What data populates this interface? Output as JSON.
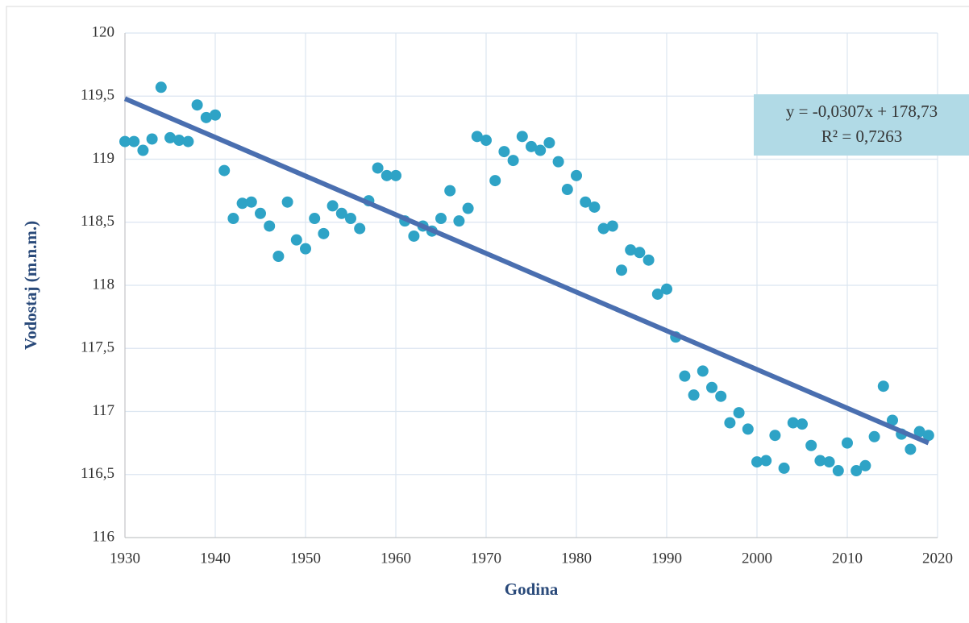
{
  "chart_data": {
    "type": "scatter",
    "x_label": "Godina",
    "y_label": "Vodostaj (m.n.m.)",
    "annotations": [
      "y = -0,0307x + 178,73",
      "R² = 0,7263"
    ],
    "xlim": [
      1930,
      2020
    ],
    "xticks": [
      1930,
      1940,
      1950,
      1960,
      1970,
      1980,
      1990,
      2000,
      2010,
      2020
    ],
    "ylim": [
      116,
      120
    ],
    "yticks": [
      116,
      {
        "value": 116.5,
        "label": "116,5"
      },
      117,
      {
        "value": 117.5,
        "label": "117,5"
      },
      118,
      {
        "value": 118.5,
        "label": "118,5"
      },
      119,
      {
        "value": 119.5,
        "label": "119,5"
      },
      120
    ],
    "grid": true,
    "color": "#2ea3c6",
    "x": [
      1930,
      1931,
      1932,
      1933,
      1934,
      1935,
      1936,
      1937,
      1938,
      1939,
      1940,
      1941,
      1942,
      1943,
      1944,
      1945,
      1946,
      1947,
      1948,
      1949,
      1950,
      1951,
      1952,
      1953,
      1954,
      1955,
      1956,
      1957,
      1958,
      1959,
      1960,
      1961,
      1962,
      1963,
      1964,
      1965,
      1966,
      1967,
      1968,
      1969,
      1970,
      1971,
      1972,
      1973,
      1974,
      1975,
      1976,
      1977,
      1978,
      1979,
      1980,
      1981,
      1982,
      1983,
      1984,
      1985,
      1986,
      1987,
      1988,
      1989,
      1990,
      1991,
      1992,
      1993,
      1994,
      1995,
      1996,
      1997,
      1998,
      1999,
      2000,
      2001,
      2002,
      2003,
      2004,
      2005,
      2006,
      2007,
      2008,
      2009,
      2010,
      2011,
      2012,
      2013,
      2014,
      2015,
      2016,
      2017,
      2018,
      2019
    ],
    "values": [
      119.14,
      119.14,
      119.07,
      119.16,
      119.57,
      119.17,
      119.15,
      119.14,
      119.43,
      119.33,
      119.35,
      118.91,
      118.53,
      118.65,
      118.66,
      118.57,
      118.47,
      118.23,
      118.66,
      118.36,
      118.29,
      118.53,
      118.41,
      118.63,
      118.57,
      118.53,
      118.45,
      118.67,
      118.93,
      118.87,
      118.87,
      118.51,
      118.39,
      118.47,
      118.43,
      118.53,
      118.75,
      118.51,
      118.61,
      119.18,
      119.15,
      118.83,
      119.06,
      118.99,
      119.18,
      119.1,
      119.07,
      119.13,
      118.98,
      118.76,
      118.87,
      118.66,
      118.62,
      118.45,
      118.47,
      118.12,
      118.28,
      118.26,
      118.2,
      117.93,
      117.97,
      117.59,
      117.28,
      117.13,
      117.32,
      117.19,
      117.12,
      116.91,
      116.99,
      116.86,
      116.6,
      116.61,
      116.81,
      116.55,
      116.91,
      116.9,
      116.73,
      116.61,
      116.6,
      116.53,
      116.75,
      116.53,
      116.57,
      116.8,
      117.2,
      116.93,
      116.82,
      116.7,
      116.84,
      116.81
    ],
    "trendline": {
      "color": "#4a6fb0",
      "x": [
        1930,
        2019
      ],
      "values": [
        119.48,
        116.75
      ]
    }
  }
}
